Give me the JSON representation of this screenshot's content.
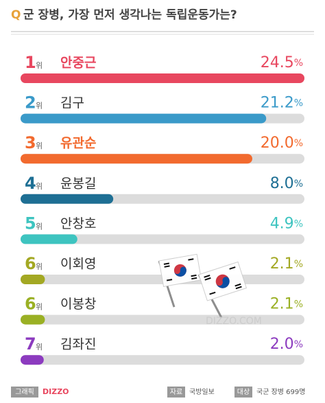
{
  "chart_data": {
    "type": "bar",
    "orientation": "horizontal",
    "question_mark": "Q",
    "title": "군 장병, 가장 먼저 생각나는 독립운동가는?",
    "ranks": [
      1,
      2,
      3,
      4,
      5,
      6,
      6,
      7
    ],
    "rank_suffix": "위",
    "categories": [
      "안중근",
      "김구",
      "유관순",
      "윤봉길",
      "안창호",
      "이회영",
      "이봉창",
      "김좌진"
    ],
    "values": [
      24.5,
      21.2,
      20.0,
      8.0,
      4.9,
      2.1,
      2.1,
      2.0
    ],
    "value_labels": [
      "24.5%",
      "21.2%",
      "20.0%",
      "8.0%",
      "4.9%",
      "2.1%",
      "2.1%",
      "2.0%"
    ],
    "colors": [
      "#e8475f",
      "#3a9ac9",
      "#f26a2e",
      "#1e6f94",
      "#3ec4c0",
      "#a3a823",
      "#9ab024",
      "#8c3bbf"
    ],
    "xlim": [
      0,
      24.5
    ],
    "watermark": "DIZZO.COM",
    "footer": {
      "graphic_label": "그래픽",
      "graphic": "DIZZO",
      "source_label": "자료",
      "source": "국방일보",
      "target_label": "대상",
      "target": "국군 장병 699명"
    }
  }
}
